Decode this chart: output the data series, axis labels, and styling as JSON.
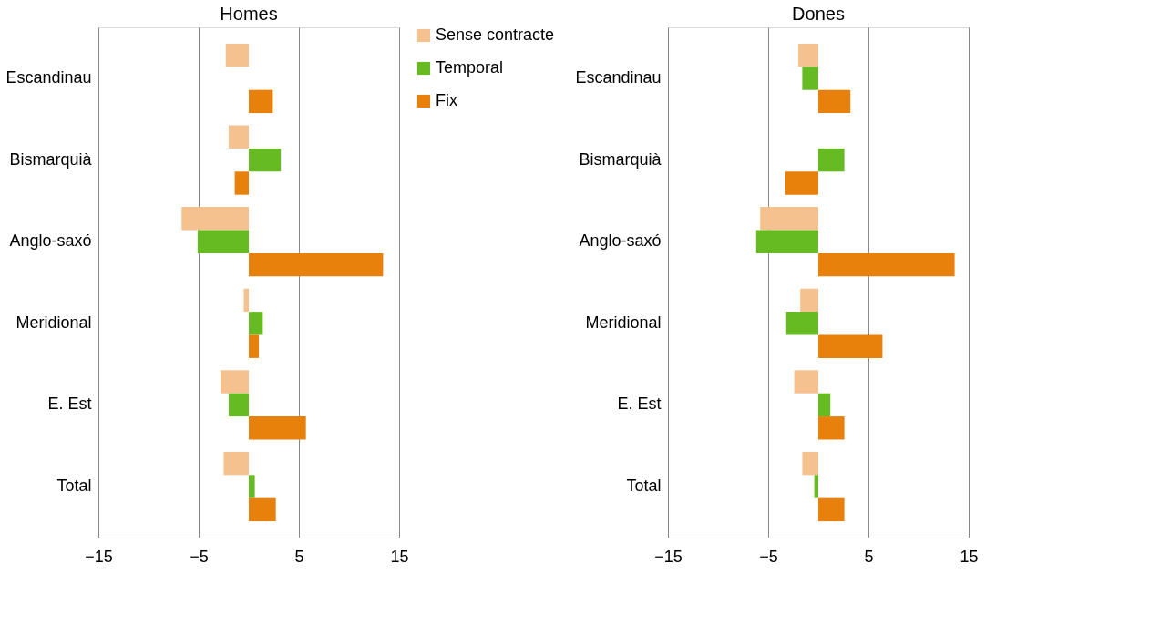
{
  "chart_data": [
    {
      "type": "bar",
      "orientation": "horizontal",
      "title": "Homes",
      "categories": [
        "Escandinau",
        "Bismarquià",
        "Anglo-saxó",
        "Meridional",
        "E. Est",
        "Total"
      ],
      "series": [
        {
          "name": "Sense contracte",
          "color": "#f5c18f",
          "values": [
            -2.3,
            -2.0,
            -6.7,
            -0.5,
            -2.8,
            -2.5
          ]
        },
        {
          "name": "Temporal",
          "color": "#66bb22",
          "values": [
            0,
            3.2,
            -5.1,
            1.4,
            -2.0,
            0.6
          ]
        },
        {
          "name": "Fix",
          "color": "#e8800c",
          "values": [
            2.4,
            -1.4,
            13.4,
            1.0,
            5.7,
            2.7
          ]
        }
      ],
      "xlim": [
        -15,
        15
      ],
      "xticks": [
        -15,
        -5,
        5,
        15
      ],
      "grid": "x",
      "legend": "right"
    },
    {
      "type": "bar",
      "orientation": "horizontal",
      "title": "Dones",
      "categories": [
        "Escandinau",
        "Bismarquià",
        "Anglo-saxó",
        "Meridional",
        "E. Est",
        "Total"
      ],
      "series": [
        {
          "color": "#f5c18f",
          "values": [
            -2.0,
            0,
            -5.8,
            -1.8,
            -2.4,
            -1.6
          ]
        },
        {
          "color": "#66bb22",
          "values": [
            -1.6,
            2.6,
            -6.2,
            -3.2,
            1.2,
            -0.4
          ]
        },
        {
          "color": "#e8800c",
          "values": [
            3.2,
            -3.3,
            13.6,
            6.4,
            2.6,
            2.6
          ]
        }
      ],
      "xlim": [
        -15,
        15
      ],
      "xticks": [
        -15,
        -5,
        5,
        15
      ],
      "grid": "x",
      "legend": false
    }
  ]
}
